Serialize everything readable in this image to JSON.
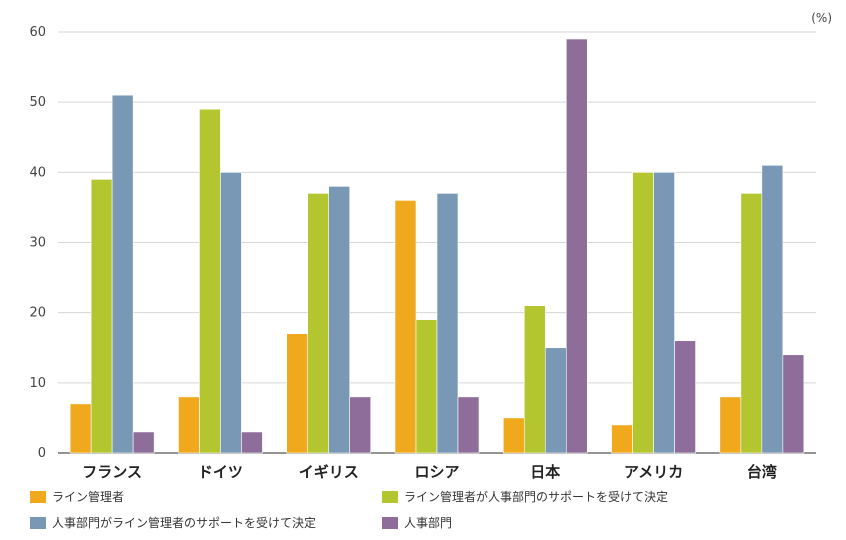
{
  "chart_data": {
    "type": "bar",
    "unit": "(%)",
    "categories": [
      "フランス",
      "ドイツ",
      "イギリス",
      "ロシア",
      "日本",
      "アメリカ",
      "台湾"
    ],
    "ylim": [
      0,
      60
    ],
    "yticks": [
      0,
      10,
      20,
      30,
      40,
      50,
      60
    ],
    "grid": true,
    "legend_position": "bottom",
    "series": [
      {
        "name": "ライン管理者",
        "color": "#f0a81c",
        "values": [
          7,
          8,
          17,
          36,
          5,
          4,
          8
        ]
      },
      {
        "name": "ライン管理者が人事部門のサポートを受けて決定",
        "color": "#b4c62f",
        "values": [
          39,
          49,
          37,
          19,
          21,
          40,
          37
        ]
      },
      {
        "name": "人事部門がライン管理者のサポートを受けて決定",
        "color": "#7898b6",
        "values": [
          51,
          40,
          38,
          37,
          15,
          40,
          41
        ]
      },
      {
        "name": "人事部門",
        "color": "#8f6d9a",
        "values": [
          3,
          3,
          8,
          8,
          59,
          16,
          14
        ]
      }
    ]
  }
}
